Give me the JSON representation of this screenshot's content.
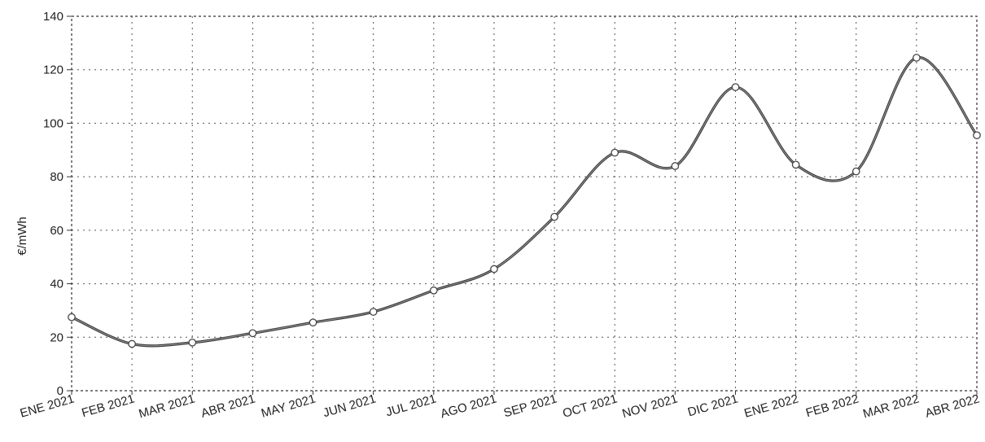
{
  "chart_data": {
    "type": "line",
    "ylabel": "€/mWh",
    "xlabel": "",
    "title": "",
    "ylim": [
      0,
      140
    ],
    "yticks": [
      "0",
      "20",
      "40",
      "60",
      "80",
      "100",
      "120",
      "140"
    ],
    "grid": true,
    "categories": [
      "ENE 2021",
      "FEB 2021",
      "MAR 2021",
      "ABR 2021",
      "MAY 2021",
      "JUN 2021",
      "JUL 2021",
      "AGO 2021",
      "SEP 2021",
      "OCT 2021",
      "NOV 2021",
      "DIC 2021",
      "ENE 2022",
      "FEB 2022",
      "MAR 2022",
      "ABR 2022"
    ],
    "series": [
      {
        "values": [
          27.5,
          17.5,
          18,
          21.5,
          25.5,
          29.5,
          37.5,
          45.5,
          65,
          89,
          84,
          113.5,
          84.5,
          82,
          124.5,
          95.5
        ],
        "color": "#3a3a3a"
      }
    ]
  }
}
